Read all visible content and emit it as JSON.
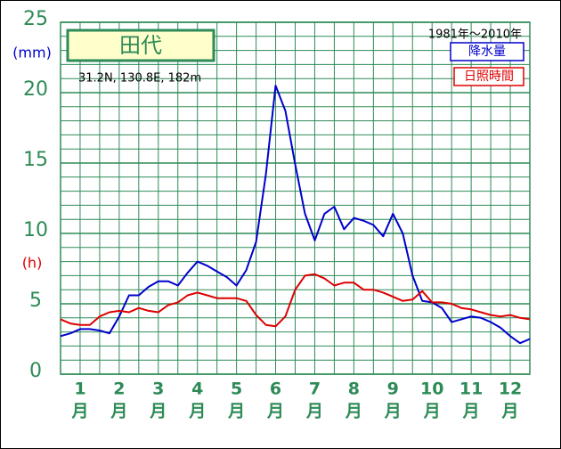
{
  "chart_data": {
    "type": "line",
    "title": "田代",
    "subtitle": "31.2N,  130.8E,  182m",
    "period": "1981年～2010年",
    "y_label": "(mm)",
    "y2_label": "(h)",
    "month_labels": [
      "1",
      "2",
      "3",
      "4",
      "5",
      "6",
      "7",
      "8",
      "9",
      "10",
      "11",
      "12"
    ],
    "month_unit": "月",
    "x": [
      0,
      0.25,
      0.5,
      0.75,
      1,
      1.25,
      1.5,
      1.75,
      2,
      2.25,
      2.5,
      2.75,
      3,
      3.25,
      3.5,
      3.75,
      4,
      4.25,
      4.5,
      4.75,
      5,
      5.25,
      5.5,
      5.75,
      6,
      6.25,
      6.5,
      6.75,
      7,
      7.25,
      7.5,
      7.75,
      8,
      8.25,
      8.5,
      8.75,
      9,
      9.25,
      9.5,
      9.75,
      10,
      10.25,
      10.5,
      10.75,
      11,
      11.25,
      11.5,
      11.75,
      12
    ],
    "xlim": [
      0,
      12
    ],
    "x_grid_step": 0.5,
    "ylim": [
      0,
      25
    ],
    "yticks": [
      0,
      5,
      10,
      15,
      20,
      25
    ],
    "y_grid_step": 1,
    "grid": true,
    "series": [
      {
        "name": "降水量",
        "color": "#0000cc",
        "values": [
          2.7,
          2.9,
          3.2,
          3.2,
          3.1,
          2.9,
          4.1,
          5.6,
          5.6,
          6.2,
          6.6,
          6.6,
          6.3,
          7.2,
          8.0,
          7.7,
          7.3,
          6.9,
          6.3,
          7.4,
          9.4,
          14.2,
          20.5,
          18.7,
          14.9,
          11.4,
          9.5,
          11.4,
          11.9,
          10.3,
          11.1,
          10.9,
          10.6,
          9.8,
          11.4,
          10.0,
          7.0,
          5.2,
          5.1,
          4.7,
          3.7,
          3.9,
          4.1,
          4.0,
          3.7,
          3.3,
          2.7,
          2.2,
          2.5
        ]
      },
      {
        "name": "日照時間",
        "color": "#dd0000",
        "values": [
          3.9,
          3.6,
          3.5,
          3.5,
          4.1,
          4.4,
          4.5,
          4.4,
          4.7,
          4.5,
          4.4,
          4.9,
          5.1,
          5.6,
          5.8,
          5.6,
          5.4,
          5.4,
          5.4,
          5.2,
          4.2,
          3.5,
          3.4,
          4.1,
          6.0,
          7.0,
          7.1,
          6.8,
          6.3,
          6.5,
          6.5,
          6.0,
          6.0,
          5.8,
          5.5,
          5.2,
          5.3,
          5.9,
          5.1,
          5.1,
          5.0,
          4.7,
          4.6,
          4.4,
          4.2,
          4.1,
          4.2,
          4.0,
          3.9
        ]
      }
    ]
  }
}
